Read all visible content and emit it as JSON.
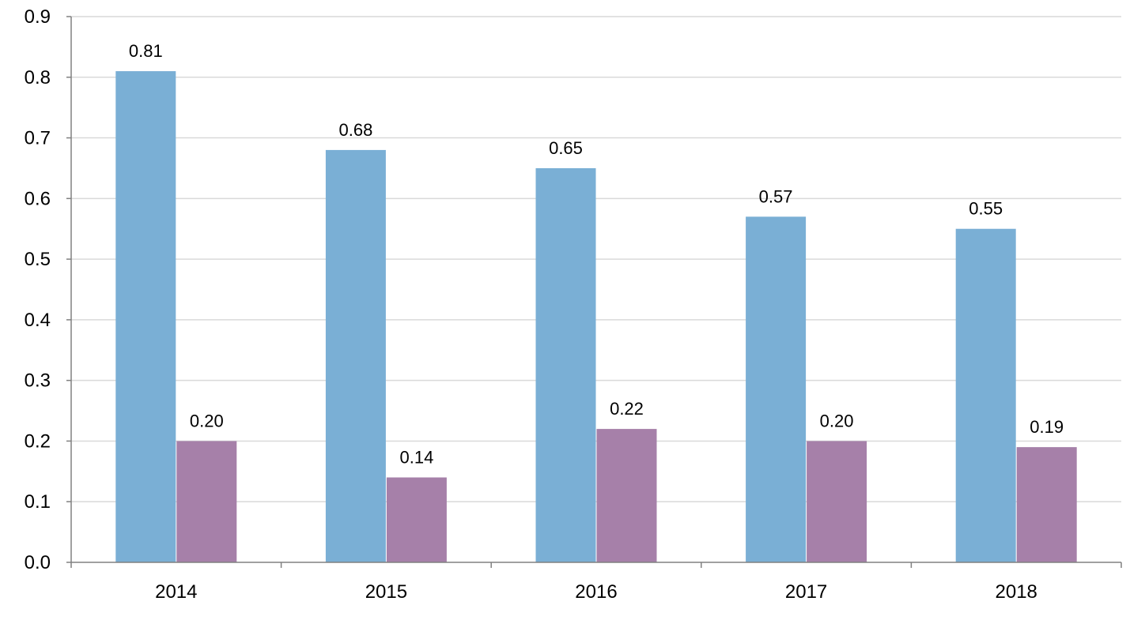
{
  "chart_data": {
    "type": "bar",
    "title": "",
    "xlabel": "",
    "ylabel": "",
    "categories": [
      "2014",
      "2015",
      "2016",
      "2017",
      "2018"
    ],
    "series": [
      {
        "values": [
          0.81,
          0.68,
          0.65,
          0.57,
          0.55
        ],
        "labels": [
          "0.81",
          "0.68",
          "0.65",
          "0.57",
          "0.55"
        ],
        "color": "#7aafd5"
      },
      {
        "values": [
          0.2,
          0.14,
          0.22,
          0.2,
          0.19
        ],
        "labels": [
          "0.20",
          "0.14",
          "0.22",
          "0.20",
          "0.19"
        ],
        "color": "#a680a9"
      }
    ],
    "ylim": [
      0,
      0.9
    ],
    "yticks": [
      "0.0",
      "0.1",
      "0.2",
      "0.3",
      "0.4",
      "0.5",
      "0.6",
      "0.7",
      "0.8",
      "0.9"
    ],
    "grid": true,
    "legend": "none"
  }
}
